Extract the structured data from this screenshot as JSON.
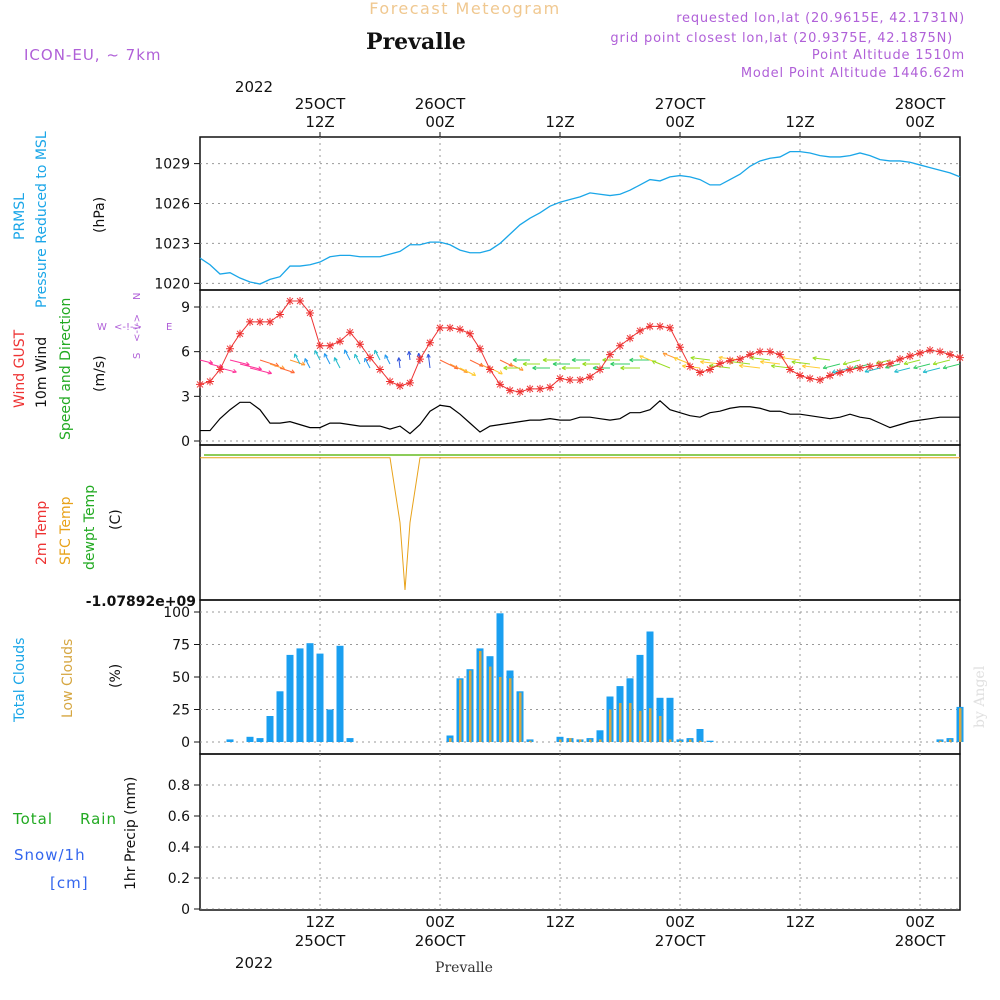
{
  "header": {
    "suptitle": "Forecast Meteogram",
    "station": "Prevalle",
    "model": "ICON-EU, ~ 7km",
    "requested": "requested lon,lat (20.9615E, 42.1731N)",
    "gridpoint": "grid point closest lon,lat (20.9375E, 42.1875N)",
    "alt": "Point Altitude 1510m",
    "model_alt": "Model Point Altitude 1446.62m"
  },
  "top_axis": {
    "year": "2022",
    "ticks": [
      {
        "hour": 12,
        "line1": "25OCT",
        "line2": "12Z"
      },
      {
        "hour": 24,
        "line1": "26OCT",
        "line2": "00Z"
      },
      {
        "hour": 36,
        "line1": "",
        "line2": "12Z"
      },
      {
        "hour": 48,
        "line1": "27OCT",
        "line2": "00Z"
      },
      {
        "hour": 60,
        "line1": "",
        "line2": "12Z"
      },
      {
        "hour": 72,
        "line1": "28OCT",
        "line2": "00Z"
      }
    ]
  },
  "bottom_axis": {
    "year": "2022",
    "ticks": [
      {
        "hour": 12,
        "line1": "12Z",
        "line2": "25OCT"
      },
      {
        "hour": 24,
        "line1": "00Z",
        "line2": "26OCT"
      },
      {
        "hour": 36,
        "line1": "12Z",
        "line2": ""
      },
      {
        "hour": 48,
        "line1": "00Z",
        "line2": "27OCT"
      },
      {
        "hour": 60,
        "line1": "12Z",
        "line2": ""
      },
      {
        "hour": 72,
        "line1": "00Z",
        "line2": "28OCT"
      }
    ],
    "footer": "Prevalle"
  },
  "panels": {
    "pressure": {
      "label1": "PRMSL",
      "label2": "Pressure Reduced to MSL",
      "unit": "(hPa)",
      "yticks": [
        "1020",
        "1023",
        "1026",
        "1029"
      ]
    },
    "wind": {
      "label1": "Wind GUST",
      "label2": "10m Wind",
      "label3": "Speed and Direction",
      "unit": "(m/s)",
      "yticks": [
        "0",
        "3",
        "6",
        "9"
      ],
      "compass": {
        "n": "N",
        "s": "S",
        "e": "E",
        "w": "W",
        "arrow": "<-!->"
      }
    },
    "temp": {
      "label1": "2m Temp",
      "label2": "SFC Temp",
      "label3": "dewpt Temp",
      "unit": "(C)",
      "ymin_label": "-1.07892e+09"
    },
    "clouds": {
      "label1": "Total Clouds",
      "label2": "Low Clouds",
      "unit": "(%)",
      "yticks": [
        "0",
        "25",
        "50",
        "75",
        "100"
      ],
      "credit": "by Angel"
    },
    "precip": {
      "label1": "Total",
      "label2": "Rain",
      "label3": "Snow/1h",
      "label4": "[cm]",
      "unit": "1hr Precip (mm)",
      "yticks": [
        "0",
        "0.2",
        "0.4",
        "0.6",
        "0.8"
      ]
    }
  },
  "colors": {
    "pressure": "#1aa6e8",
    "gust": "#ee3333",
    "wind": "#000000",
    "temp_sfc": "#e8a21a",
    "temp_2m": "#66bb22",
    "total_cloud": "#1a9ff0",
    "low_cloud": "#d6a742",
    "title": "#f0c890",
    "meta": "#b060d8",
    "label_green": "#22aa22",
    "label_blue": "#3366ee"
  },
  "chart_data": [
    {
      "type": "line",
      "name": "PRMSL",
      "xunit": "forecast hour",
      "x": [
        0,
        1,
        2,
        3,
        4,
        5,
        6,
        7,
        8,
        9,
        10,
        11,
        12,
        13,
        14,
        15,
        16,
        17,
        18,
        19,
        20,
        21,
        22,
        23,
        24,
        25,
        26,
        27,
        28,
        29,
        30,
        31,
        32,
        33,
        34,
        35,
        36,
        37,
        38,
        39,
        40,
        41,
        42,
        43,
        44,
        45,
        46,
        47,
        48,
        49,
        50,
        51,
        52,
        53,
        54,
        55,
        56,
        57,
        58,
        59,
        60,
        61,
        62,
        63,
        64,
        65,
        66,
        67,
        68,
        69,
        70,
        71,
        72,
        73,
        74,
        75,
        76
      ],
      "y": [
        1021.9,
        1021.4,
        1020.7,
        1020.8,
        1020.4,
        1020.1,
        1019.95,
        1020.3,
        1020.5,
        1021.3,
        1021.3,
        1021.4,
        1021.6,
        1022.0,
        1022.1,
        1022.1,
        1022.0,
        1022.0,
        1022.0,
        1022.2,
        1022.4,
        1022.9,
        1022.9,
        1023.1,
        1023.1,
        1022.9,
        1022.5,
        1022.3,
        1022.3,
        1022.5,
        1023.0,
        1023.7,
        1024.4,
        1024.9,
        1025.3,
        1025.8,
        1026.1,
        1026.3,
        1026.5,
        1026.8,
        1026.7,
        1026.6,
        1026.7,
        1027.0,
        1027.4,
        1027.8,
        1027.7,
        1028.0,
        1028.1,
        1028.0,
        1027.8,
        1027.4,
        1027.4,
        1027.8,
        1028.2,
        1028.8,
        1029.2,
        1029.4,
        1029.5,
        1029.9,
        1029.9,
        1029.8,
        1029.6,
        1029.5,
        1029.5,
        1029.6,
        1029.8,
        1029.6,
        1029.3,
        1029.2,
        1029.2,
        1029.1,
        1028.9,
        1028.7,
        1028.5,
        1028.3,
        1028.0
      ],
      "ylim": [
        1019.5,
        1031
      ]
    },
    {
      "type": "line",
      "name": "Wind GUST",
      "xunit": "forecast hour",
      "x": [
        0,
        1,
        2,
        3,
        4,
        5,
        6,
        7,
        8,
        9,
        10,
        11,
        12,
        13,
        14,
        15,
        16,
        17,
        18,
        19,
        20,
        21,
        22,
        23,
        24,
        25,
        26,
        27,
        28,
        29,
        30,
        31,
        32,
        33,
        34,
        35,
        36,
        37,
        38,
        39,
        40,
        41,
        42,
        43,
        44,
        45,
        46,
        47,
        48,
        49,
        50,
        51,
        52,
        53,
        54,
        55,
        56,
        57,
        58,
        59,
        60,
        61,
        62,
        63,
        64,
        65,
        66,
        67,
        68,
        69,
        70,
        71,
        72,
        73,
        74,
        75,
        76
      ],
      "y": [
        3.8,
        4.0,
        4.8,
        6.2,
        7.2,
        8.0,
        8.0,
        8.0,
        8.5,
        9.4,
        9.4,
        8.6,
        6.4,
        6.4,
        6.7,
        7.3,
        6.5,
        5.6,
        4.8,
        4.0,
        3.7,
        3.9,
        5.5,
        6.6,
        7.6,
        7.6,
        7.5,
        7.2,
        6.2,
        4.8,
        3.8,
        3.4,
        3.3,
        3.5,
        3.5,
        3.6,
        4.2,
        4.1,
        4.1,
        4.3,
        4.8,
        5.8,
        6.4,
        6.9,
        7.4,
        7.7,
        7.7,
        7.6,
        6.3,
        5.0,
        4.6,
        4.8,
        5.2,
        5.4,
        5.5,
        5.8,
        6.0,
        6.0,
        5.8,
        4.8,
        4.4,
        4.2,
        4.1,
        4.4,
        4.6,
        4.8,
        4.9,
        5.0,
        5.1,
        5.2,
        5.5,
        5.7,
        5.9,
        6.1,
        6.0,
        5.8,
        5.6
      ],
      "ylim": [
        0,
        10
      ]
    },
    {
      "type": "line",
      "name": "10m Wind",
      "xunit": "forecast hour",
      "x": [
        0,
        1,
        2,
        3,
        4,
        5,
        6,
        7,
        8,
        9,
        10,
        11,
        12,
        13,
        14,
        15,
        16,
        17,
        18,
        19,
        20,
        21,
        22,
        23,
        24,
        25,
        26,
        27,
        28,
        29,
        30,
        31,
        32,
        33,
        34,
        35,
        36,
        37,
        38,
        39,
        40,
        41,
        42,
        43,
        44,
        45,
        46,
        47,
        48,
        49,
        50,
        51,
        52,
        53,
        54,
        55,
        56,
        57,
        58,
        59,
        60,
        61,
        62,
        63,
        64,
        65,
        66,
        67,
        68,
        69,
        70,
        71,
        72,
        73,
        74,
        75,
        76
      ],
      "y": [
        0.7,
        0.7,
        1.5,
        2.1,
        2.6,
        2.6,
        2.1,
        1.2,
        1.2,
        1.3,
        1.1,
        0.9,
        0.9,
        1.2,
        1.2,
        1.1,
        1.0,
        1.0,
        1.0,
        0.8,
        1.0,
        0.5,
        1.1,
        2.0,
        2.4,
        2.3,
        1.8,
        1.2,
        0.6,
        1.0,
        1.1,
        1.2,
        1.3,
        1.4,
        1.4,
        1.5,
        1.4,
        1.4,
        1.6,
        1.6,
        1.5,
        1.4,
        1.5,
        1.9,
        1.9,
        2.1,
        2.7,
        2.1,
        1.9,
        1.7,
        1.6,
        1.9,
        2.0,
        2.2,
        2.3,
        2.3,
        2.2,
        2.0,
        2.0,
        1.8,
        1.8,
        1.7,
        1.6,
        1.5,
        1.6,
        1.8,
        1.6,
        1.5,
        1.2,
        0.9,
        1.1,
        1.3,
        1.4,
        1.5,
        1.6,
        1.6,
        1.6
      ],
      "ylim": [
        0,
        10
      ]
    },
    {
      "type": "line",
      "name": "SFC Temp",
      "xunit": "forecast hour",
      "x": [
        0,
        19,
        20,
        20.5,
        21,
        22,
        76
      ],
      "y": [
        0.02,
        0.02,
        0.5,
        1.0,
        0.5,
        0.02,
        0.02
      ],
      "note": "values shown as fraction of panel height only (axis label -1.07892e+09 printed)"
    },
    {
      "type": "bar",
      "name": "Total Clouds",
      "xunit": "forecast hour",
      "x": [
        0,
        1,
        2,
        3,
        4,
        5,
        6,
        7,
        8,
        9,
        10,
        11,
        12,
        13,
        14,
        15,
        16,
        17,
        18,
        19,
        20,
        21,
        22,
        23,
        24,
        25,
        26,
        27,
        28,
        29,
        30,
        31,
        32,
        33,
        34,
        35,
        36,
        37,
        38,
        39,
        40,
        41,
        42,
        43,
        44,
        45,
        46,
        47,
        48,
        49,
        50,
        51,
        52,
        53,
        54,
        55,
        56,
        57,
        58,
        59,
        60,
        61,
        62,
        63,
        64,
        65,
        66,
        67,
        68,
        69,
        70,
        71,
        72,
        73,
        74,
        75,
        76
      ],
      "y": [
        0,
        0,
        0,
        2,
        0,
        4,
        3,
        20,
        39,
        67,
        72,
        76,
        68,
        25,
        74,
        3,
        0,
        0,
        0,
        0,
        0,
        0,
        0,
        0,
        0,
        5,
        49,
        56,
        72,
        66,
        99,
        55,
        39,
        2,
        0,
        0,
        4,
        3,
        2,
        3,
        9,
        35,
        43,
        49,
        67,
        85,
        34,
        34,
        2,
        3,
        10,
        1,
        0,
        0,
        0,
        0,
        0,
        0,
        0,
        0,
        0,
        0,
        0,
        0,
        0,
        0,
        0,
        0,
        0,
        0,
        0,
        0,
        0,
        0,
        2,
        3,
        27
      ],
      "ylim": [
        0,
        100
      ]
    },
    {
      "type": "bar",
      "name": "Low Clouds",
      "xunit": "forecast hour",
      "x": [
        0,
        1,
        2,
        3,
        4,
        5,
        6,
        7,
        8,
        9,
        10,
        11,
        12,
        13,
        14,
        15,
        16,
        17,
        18,
        19,
        20,
        21,
        22,
        23,
        24,
        25,
        26,
        27,
        28,
        29,
        30,
        31,
        32,
        33,
        34,
        35,
        36,
        37,
        38,
        39,
        40,
        41,
        42,
        43,
        44,
        45,
        46,
        47,
        48,
        49,
        50,
        51,
        52,
        53,
        54,
        55,
        56,
        57,
        58,
        59,
        60,
        61,
        62,
        63,
        64,
        65,
        66,
        67,
        68,
        69,
        70,
        71,
        72,
        73,
        74,
        75,
        76
      ],
      "y": [
        0,
        0,
        0,
        0,
        0,
        0,
        0,
        0,
        0,
        0,
        0,
        0,
        0,
        0,
        0,
        0,
        0,
        0,
        0,
        0,
        0,
        0,
        0,
        0,
        0,
        3,
        48,
        55,
        70,
        58,
        50,
        49,
        38,
        1,
        0,
        0,
        2,
        3,
        2,
        2,
        2,
        25,
        30,
        30,
        24,
        26,
        20,
        2,
        1,
        2,
        1,
        0,
        0,
        0,
        0,
        0,
        0,
        0,
        0,
        0,
        0,
        0,
        0,
        0,
        0,
        0,
        0,
        0,
        0,
        0,
        0,
        0,
        0,
        0,
        1,
        2,
        26
      ],
      "ylim": [
        0,
        100
      ]
    },
    {
      "type": "bar",
      "name": "1hr Precip",
      "ylim": [
        0,
        1
      ],
      "y": []
    }
  ]
}
